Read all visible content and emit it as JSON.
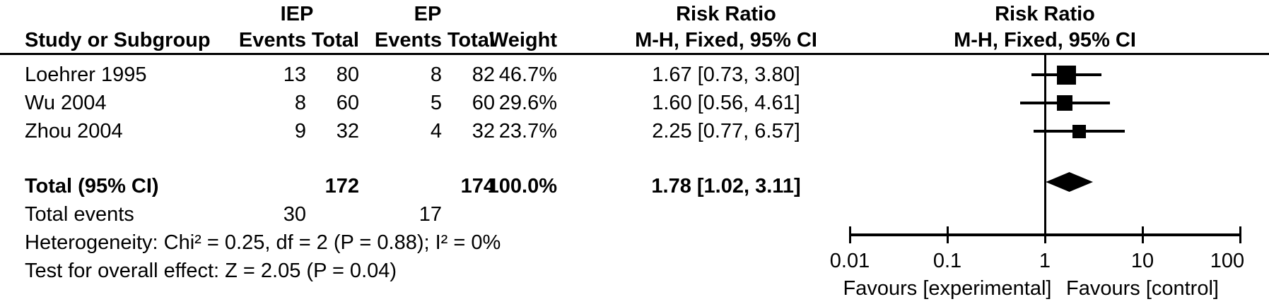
{
  "header": {
    "group1_label": "IEP",
    "group2_label": "EP",
    "study_col": "Study or Subgroup",
    "events_col1": "Events",
    "total_col1": "Total",
    "events_col2": "Events",
    "total_col2": "Total",
    "weight_col": "Weight",
    "effect_col_title": "Risk Ratio",
    "effect_col_sub": "M-H, Fixed, 95% CI",
    "plot_col_title": "Risk Ratio",
    "plot_col_sub": "M-H, Fixed, 95% CI"
  },
  "studies": [
    {
      "name": "Loehrer 1995",
      "events_exp": "13",
      "total_exp": "80",
      "events_ctrl": "8",
      "total_ctrl": "82",
      "weight": "46.7%",
      "weight_pct": 46.7,
      "ci_text": "1.67 [0.73, 3.80]",
      "rr": 1.67,
      "ci_low": 0.73,
      "ci_high": 3.8
    },
    {
      "name": "Wu 2004",
      "events_exp": "8",
      "total_exp": "60",
      "events_ctrl": "5",
      "total_ctrl": "60",
      "weight": "29.6%",
      "weight_pct": 29.6,
      "ci_text": "1.60 [0.56, 4.61]",
      "rr": 1.6,
      "ci_low": 0.56,
      "ci_high": 4.61
    },
    {
      "name": "Zhou 2004",
      "events_exp": "9",
      "total_exp": "32",
      "events_ctrl": "4",
      "total_ctrl": "32",
      "weight": "23.7%",
      "weight_pct": 23.7,
      "ci_text": "2.25 [0.77, 6.57]",
      "rr": 2.25,
      "ci_low": 0.77,
      "ci_high": 6.57
    }
  ],
  "total_row": {
    "label": "Total (95% CI)",
    "total_exp": "172",
    "total_ctrl": "174",
    "weight": "100.0%",
    "ci_text": "1.78 [1.02, 3.11]",
    "rr": 1.78,
    "ci_low": 1.02,
    "ci_high": 3.11
  },
  "total_events": {
    "label": "Total events",
    "exp": "30",
    "ctrl": "17"
  },
  "heterogeneity": "Heterogeneity: Chi² = 0.25, df = 2 (P = 0.88); I² = 0%",
  "overall_effect": "Test for overall effect: Z = 2.05 (P = 0.04)",
  "axis": {
    "scale": "log",
    "ticks": [
      0.01,
      0.1,
      1,
      10,
      100
    ],
    "tick_labels": [
      "0.01",
      "0.1",
      "1",
      "10",
      "100"
    ],
    "favours_left": "Favours [experimental]",
    "favours_right": "Favours [control]"
  },
  "colors": {
    "marker": "#000000",
    "line": "#000000",
    "text": "#000000",
    "background": "#ffffff"
  },
  "chart_data": {
    "type": "forest",
    "effect_measure": "Risk Ratio",
    "method": "M-H, Fixed, 95% CI",
    "group_labels": [
      "IEP",
      "EP"
    ],
    "x_scale": "log",
    "xlim": [
      0.01,
      100
    ],
    "x_ticks": [
      0.01,
      0.1,
      1,
      10,
      100
    ],
    "x_axis_labels": [
      "Favours [experimental]",
      "Favours [control]"
    ],
    "studies": [
      {
        "study": "Loehrer 1995",
        "events_exp": 13,
        "total_exp": 80,
        "events_ctrl": 8,
        "total_ctrl": 82,
        "weight_pct": 46.7,
        "rr": 1.67,
        "ci_low": 0.73,
        "ci_high": 3.8
      },
      {
        "study": "Wu 2004",
        "events_exp": 8,
        "total_exp": 60,
        "events_ctrl": 5,
        "total_ctrl": 60,
        "weight_pct": 29.6,
        "rr": 1.6,
        "ci_low": 0.56,
        "ci_high": 4.61
      },
      {
        "study": "Zhou 2004",
        "events_exp": 9,
        "total_exp": 32,
        "events_ctrl": 4,
        "total_ctrl": 32,
        "weight_pct": 23.7,
        "rr": 2.25,
        "ci_low": 0.77,
        "ci_high": 6.57
      }
    ],
    "total": {
      "label": "Total (95% CI)",
      "total_exp": 172,
      "total_ctrl": 174,
      "total_events_exp": 30,
      "total_events_ctrl": 17,
      "weight_pct": 100.0,
      "rr": 1.78,
      "ci_low": 1.02,
      "ci_high": 3.11
    },
    "heterogeneity": {
      "chi2": 0.25,
      "df": 2,
      "p": 0.88,
      "i2_pct": 0
    },
    "overall_effect": {
      "z": 2.05,
      "p": 0.04
    }
  }
}
